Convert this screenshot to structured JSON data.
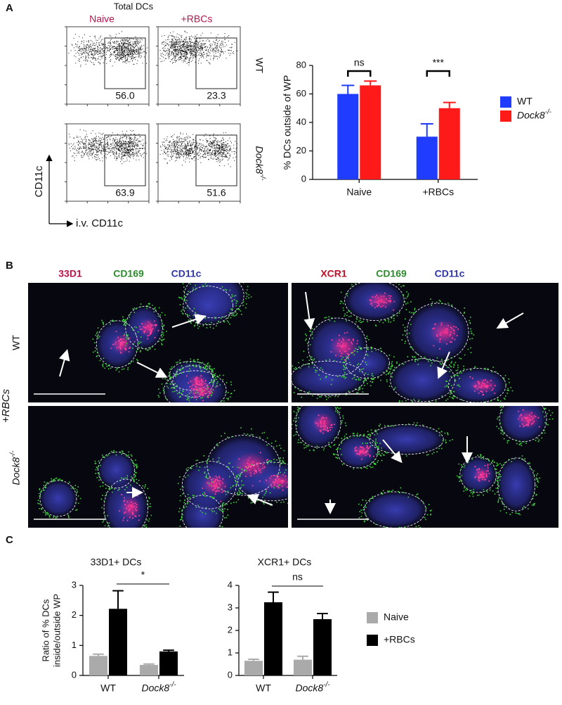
{
  "panels": {
    "a": {
      "label": "A",
      "flow": {
        "title": "Total DCs",
        "columns": [
          "Naive",
          "+RBCs"
        ],
        "rows": [
          "WT",
          "Dock8-/-"
        ],
        "gates": [
          [
            "56.0",
            "23.3"
          ],
          [
            "63.9",
            "51.6"
          ]
        ],
        "y_label": "CD11c",
        "x_label": "i.v. CD11c"
      }
    },
    "b": {
      "label": "B",
      "left_stains": [
        "33D1",
        "CD169",
        "CD11c"
      ],
      "right_stains": [
        "XCR1",
        "CD169",
        "CD11c"
      ],
      "rows": [
        "WT",
        "Dock8-/-"
      ],
      "condition": "+RBCs"
    },
    "c": {
      "label": "C"
    }
  },
  "chart_data": [
    {
      "type": "bar",
      "ylabel": "% DCs outside of WP",
      "categories": [
        "Naive",
        "+RBCs"
      ],
      "series": [
        {
          "name": "WT",
          "color": "#1f3cff",
          "values": [
            60,
            30
          ],
          "errors": [
            6,
            9
          ]
        },
        {
          "name": "Dock8-/-",
          "color": "#ff1a1a",
          "values": [
            66,
            50
          ],
          "errors": [
            3,
            4
          ]
        }
      ],
      "ylim": [
        0,
        80
      ],
      "yticks": [
        0,
        20,
        40,
        60,
        80
      ],
      "annotations": [
        "ns",
        "***"
      ]
    },
    {
      "type": "bar",
      "title": "33D1+ DCs",
      "ylabel": [
        "Ratio of % DCs",
        "inside/outside WP"
      ],
      "categories": [
        "WT",
        "Dock8-/-"
      ],
      "series": [
        {
          "name": "Naive",
          "color": "#aaaaaa",
          "values": [
            0.65,
            0.35
          ],
          "errors": [
            0.06,
            0.03
          ]
        },
        {
          "name": "+RBCs",
          "color": "#000000",
          "values": [
            2.22,
            0.8
          ],
          "errors": [
            0.6,
            0.04
          ]
        }
      ],
      "ylim": [
        0,
        3
      ],
      "yticks": [
        0,
        1,
        2,
        3
      ],
      "annotations": [
        "*"
      ]
    },
    {
      "type": "bar",
      "title": "XCR1+ DCs",
      "categories": [
        "WT",
        "Dock8-/-"
      ],
      "series": [
        {
          "color": "#aaaaaa",
          "values": [
            0.65,
            0.7
          ],
          "errors": [
            0.07,
            0.15
          ]
        },
        {
          "color": "#000000",
          "values": [
            3.25,
            2.5
          ],
          "errors": [
            0.45,
            0.25
          ]
        }
      ],
      "ylim": [
        0,
        4
      ],
      "yticks": [
        0,
        1,
        2,
        3,
        4
      ],
      "annotations": [
        "ns"
      ]
    }
  ]
}
